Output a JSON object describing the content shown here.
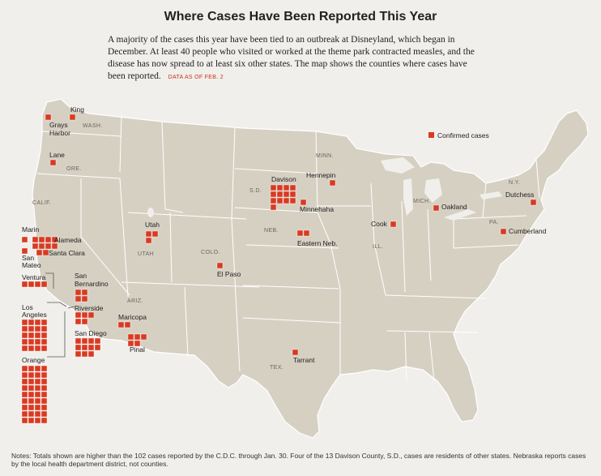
{
  "title": "Where Cases Have Been Reported This Year",
  "intro": "A majority of the cases this year have been tied to an outbreak at Disneyland, which began in December. At least 40 people who visited or worked at the theme park contracted measles, and the disease has now spread to at least six other states. The map shows the counties where cases have been reported.",
  "as_of": "DATA AS OF FEB. 2",
  "legend": "Confirmed cases",
  "notes": "Notes: Totals shown are higher than the 102 cases reported by the C.D.C. through Jan. 30. Four of the 13 Davison County, S.D., cases are residents of other states. Nebraska reports cases by the local health department district, not counties.",
  "colors": {
    "land": "#d6d0c3",
    "border": "#ffffff",
    "case": "#d93a22",
    "background": "#f1efeb"
  },
  "states": [
    "WASH.",
    "ORE.",
    "CALIF.",
    "UTAH",
    "COLO.",
    "ARIZ.",
    "TEX.",
    "S.D.",
    "NEB.",
    "MINN.",
    "ILL.",
    "MICH.",
    "PA.",
    "N.Y."
  ],
  "counties": [
    {
      "name": "King",
      "cases": 1
    },
    {
      "name": "Grays Harbor",
      "cases": 1
    },
    {
      "name": "Lane",
      "cases": 1
    },
    {
      "name": "Marin",
      "cases": 1
    },
    {
      "name": "Alameda",
      "cases": 8
    },
    {
      "name": "San Mateo",
      "cases": 1
    },
    {
      "name": "Santa Clara",
      "cases": 2
    },
    {
      "name": "Ventura",
      "cases": 4
    },
    {
      "name": "San Bernardino",
      "cases": 4
    },
    {
      "name": "Los Angeles",
      "cases": 20
    },
    {
      "name": "Riverside",
      "cases": 5
    },
    {
      "name": "San Diego",
      "cases": 11
    },
    {
      "name": "Orange",
      "cases": 36
    },
    {
      "name": "Utah",
      "cases": 3
    },
    {
      "name": "El Paso",
      "cases": 1
    },
    {
      "name": "Maricopa",
      "cases": 2
    },
    {
      "name": "Pinal",
      "cases": 5
    },
    {
      "name": "Tarrant",
      "cases": 1
    },
    {
      "name": "Davison",
      "cases": 13
    },
    {
      "name": "Minnehaha",
      "cases": 1
    },
    {
      "name": "Eastern Neb.",
      "cases": 2
    },
    {
      "name": "Hennepin",
      "cases": 1
    },
    {
      "name": "Cook",
      "cases": 1
    },
    {
      "name": "Oakland",
      "cases": 1
    },
    {
      "name": "Dutchess",
      "cases": 1
    },
    {
      "name": "Cumberland",
      "cases": 1
    }
  ]
}
